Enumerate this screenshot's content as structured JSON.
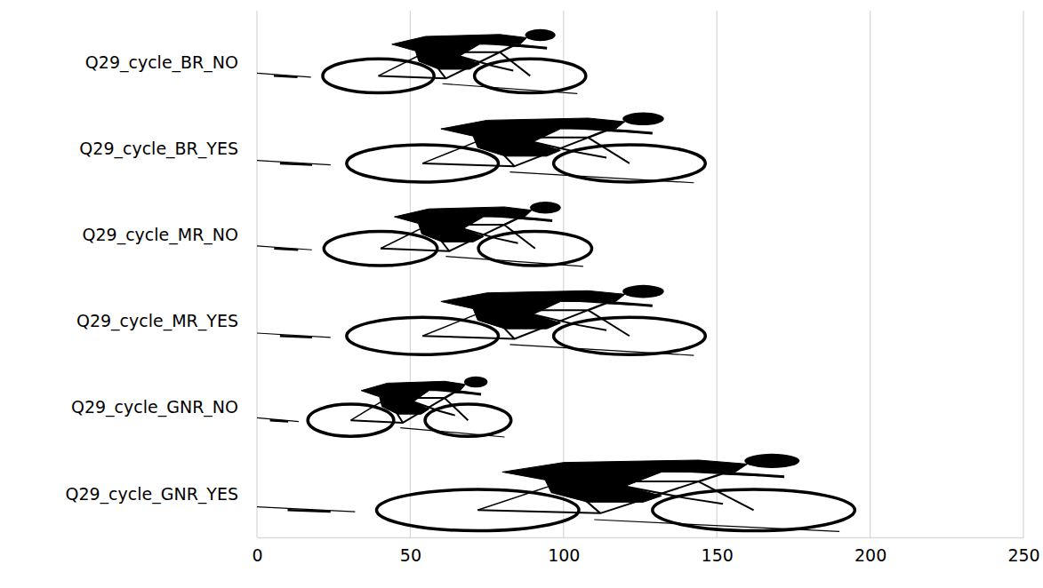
{
  "chart_data": {
    "type": "bar",
    "orientation": "horizontal",
    "categories": [
      "Q29_cycle_BR_NO",
      "Q29_cycle_BR_YES",
      "Q29_cycle_MR_NO",
      "Q29_cycle_MR_YES",
      "Q29_cycle_GNR_NO",
      "Q29_cycle_GNR_YES"
    ],
    "values": [
      110,
      150,
      112,
      150,
      85,
      200
    ],
    "color": "#000000",
    "xlim": [
      0,
      250
    ],
    "xticks": [
      0,
      50,
      100,
      150,
      200,
      250
    ],
    "grid": true
  }
}
